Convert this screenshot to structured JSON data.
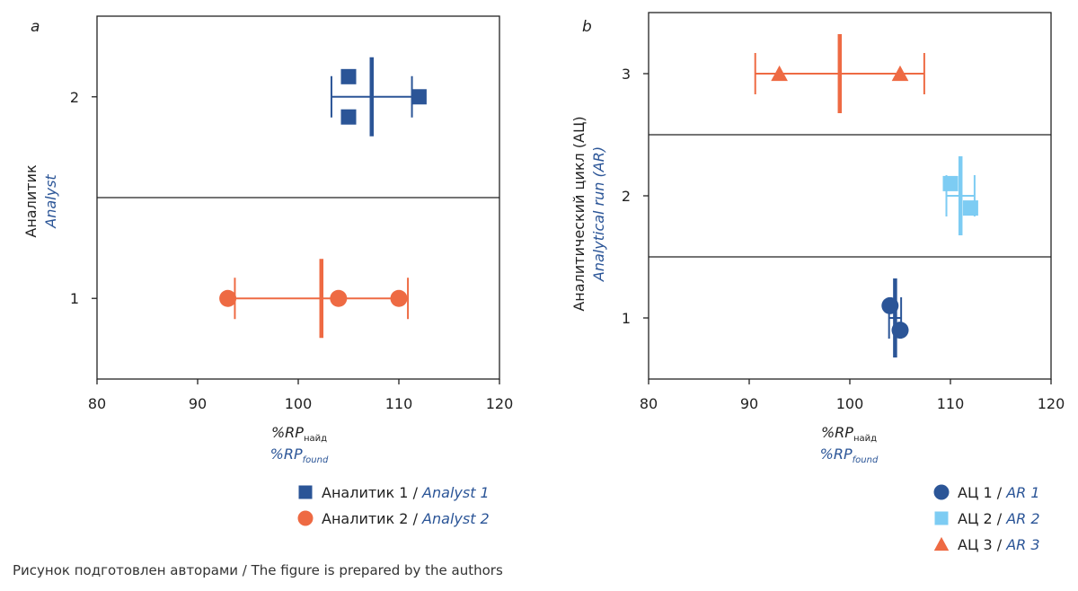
{
  "caption": "Рисунок подготовлен авторами / The figure is prepared by the authors",
  "colors": {
    "analyst1": "#2B5597",
    "analyst2": "#EE6A43",
    "ar1": "#2B5597",
    "ar2": "#7DCCF3",
    "ar3": "#EE6A43",
    "label_blue": "#2B5597",
    "text": "#222222"
  },
  "chart_data": [
    {
      "type": "scatter",
      "panel_letter": "a",
      "xlim": [
        80,
        120
      ],
      "xticks": [
        "80",
        "90",
        "100",
        "110",
        "120"
      ],
      "ylim": [
        0.6,
        2.4
      ],
      "yticks": [
        "1",
        "2"
      ],
      "xlabel": {
        "ru_main": "%RP",
        "ru_sub": "найд",
        "en_main": "%RP",
        "en_sub": "found"
      },
      "ylabel": {
        "ru": "Аналитик",
        "en": "Analyst"
      },
      "separators_y": [
        1.5
      ],
      "legend_position": "bottom-right",
      "series": [
        {
          "name_ru": "Аналитик 1 /",
          "name_en": "Analyst 1",
          "marker": "square",
          "color_key": "analyst1",
          "y": 2,
          "points": [
            [
              105,
              2.1
            ],
            [
              105,
              1.9
            ],
            [
              112,
              2.0
            ]
          ],
          "mean": 107.3,
          "whisker": [
            103.3,
            111.3
          ]
        },
        {
          "name_ru": "Аналитик 2 /",
          "name_en": "Analyst 2",
          "marker": "circle",
          "color_key": "analyst2",
          "y": 1,
          "points": [
            [
              93,
              1.0
            ],
            [
              104,
              1.0
            ],
            [
              110,
              1.0
            ]
          ],
          "mean": 102.3,
          "whisker": [
            93.7,
            110.9
          ]
        }
      ]
    },
    {
      "type": "scatter",
      "panel_letter": "b",
      "xlim": [
        80,
        120
      ],
      "xticks": [
        "80",
        "90",
        "100",
        "110",
        "120"
      ],
      "ylim": [
        0.5,
        3.5
      ],
      "yticks": [
        "1",
        "2",
        "3"
      ],
      "xlabel": {
        "ru_main": "%RP",
        "ru_sub": "найд",
        "en_main": "%RP",
        "en_sub": "found"
      },
      "ylabel": {
        "ru": "Аналитический цикл (АЦ)",
        "en": "Analytical run (AR)"
      },
      "separators_y": [
        1.5,
        2.5
      ],
      "legend_position": "bottom-right",
      "series": [
        {
          "name_ru": "АЦ 1 /",
          "name_en": "AR 1",
          "marker": "circle",
          "color_key": "ar1",
          "y": 1,
          "points": [
            [
              104,
              1.1
            ],
            [
              105,
              0.9
            ]
          ],
          "mean": 104.5,
          "whisker": [
            103.9,
            105.1
          ]
        },
        {
          "name_ru": "АЦ 2 /",
          "name_en": "AR 2",
          "marker": "square",
          "color_key": "ar2",
          "y": 2,
          "points": [
            [
              110,
              2.1
            ],
            [
              112,
              1.9
            ]
          ],
          "mean": 111.0,
          "whisker": [
            109.6,
            112.4
          ]
        },
        {
          "name_ru": "АЦ 3 /",
          "name_en": "AR 3",
          "marker": "triangle",
          "color_key": "ar3",
          "y": 3,
          "points": [
            [
              93,
              3.0
            ],
            [
              105,
              3.0
            ]
          ],
          "mean": 99.0,
          "whisker": [
            90.6,
            107.4
          ]
        }
      ]
    }
  ]
}
